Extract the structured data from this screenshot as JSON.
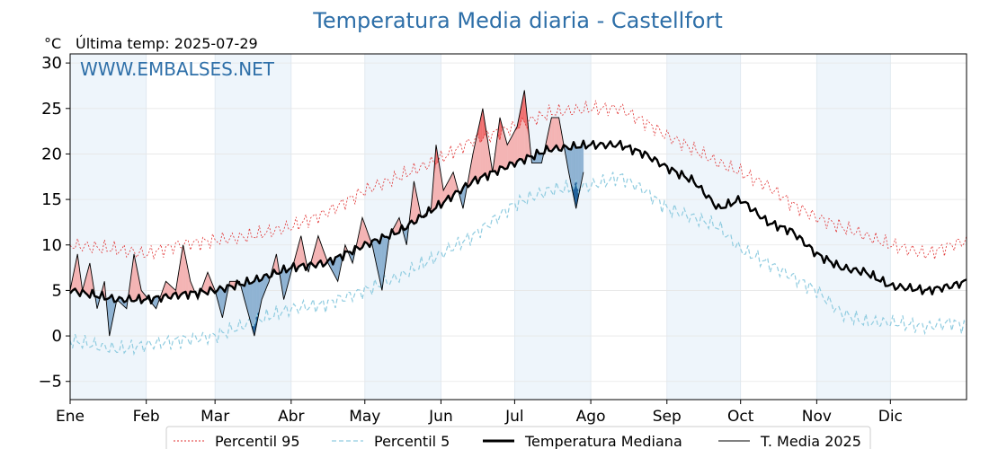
{
  "chart_data": {
    "type": "line",
    "title": "Temperatura Media diaria - Castellfort",
    "unit": "°C",
    "last_update": "Última temp: 2025-07-29",
    "watermark": "WWW.EMBALSES.NET",
    "ylim": [
      -7,
      31
    ],
    "yticks": [
      -5,
      0,
      5,
      10,
      15,
      20,
      25,
      30
    ],
    "xlim": [
      1,
      366
    ],
    "months": [
      "Ene",
      "Feb",
      "Mar",
      "Abr",
      "May",
      "Jun",
      "Jul",
      "Ago",
      "Sep",
      "Oct",
      "Nov",
      "Dic"
    ],
    "month_start_days": [
      1,
      32,
      60,
      91,
      121,
      152,
      182,
      213,
      244,
      274,
      305,
      335
    ],
    "grid": true,
    "legend_position": "bottom",
    "series_keypoints": {
      "p95": [
        [
          1,
          10
        ],
        [
          20,
          9.5
        ],
        [
          32,
          9
        ],
        [
          45,
          10
        ],
        [
          60,
          10.5
        ],
        [
          75,
          11
        ],
        [
          91,
          12
        ],
        [
          105,
          13.5
        ],
        [
          121,
          16
        ],
        [
          135,
          17.5
        ],
        [
          152,
          19.5
        ],
        [
          165,
          21.5
        ],
        [
          182,
          23
        ],
        [
          196,
          24.5
        ],
        [
          213,
          25
        ],
        [
          225,
          25
        ],
        [
          235,
          23.5
        ],
        [
          244,
          22
        ],
        [
          255,
          20.5
        ],
        [
          265,
          19
        ],
        [
          274,
          18
        ],
        [
          285,
          16.5
        ],
        [
          295,
          14.5
        ],
        [
          305,
          13
        ],
        [
          315,
          12
        ],
        [
          325,
          11
        ],
        [
          335,
          10
        ],
        [
          350,
          9
        ],
        [
          360,
          10
        ],
        [
          366,
          10.5
        ]
      ],
      "p5": [
        [
          1,
          -0.5
        ],
        [
          20,
          -1.5
        ],
        [
          32,
          -1
        ],
        [
          45,
          -0.5
        ],
        [
          60,
          0
        ],
        [
          75,
          1.5
        ],
        [
          91,
          3
        ],
        [
          105,
          3.5
        ],
        [
          121,
          5
        ],
        [
          135,
          6.5
        ],
        [
          152,
          9
        ],
        [
          165,
          11
        ],
        [
          182,
          14.5
        ],
        [
          196,
          16
        ],
        [
          213,
          16.5
        ],
        [
          225,
          17.5
        ],
        [
          235,
          16
        ],
        [
          244,
          14
        ],
        [
          255,
          13
        ],
        [
          265,
          12
        ],
        [
          274,
          9.5
        ],
        [
          285,
          8
        ],
        [
          295,
          6.5
        ],
        [
          305,
          5
        ],
        [
          315,
          2.5
        ],
        [
          325,
          1.5
        ],
        [
          335,
          1.5
        ],
        [
          350,
          1
        ],
        [
          360,
          1.5
        ],
        [
          366,
          1
        ]
      ],
      "median": [
        [
          1,
          5
        ],
        [
          20,
          4
        ],
        [
          32,
          4
        ],
        [
          45,
          4.5
        ],
        [
          60,
          5
        ],
        [
          75,
          6
        ],
        [
          91,
          7.5
        ],
        [
          105,
          8
        ],
        [
          121,
          10
        ],
        [
          135,
          11.5
        ],
        [
          152,
          14.5
        ],
        [
          165,
          17
        ],
        [
          182,
          19
        ],
        [
          196,
          20.5
        ],
        [
          213,
          21
        ],
        [
          225,
          21
        ],
        [
          235,
          20
        ],
        [
          244,
          18.5
        ],
        [
          255,
          17
        ],
        [
          265,
          14
        ],
        [
          274,
          15
        ],
        [
          285,
          12.5
        ],
        [
          295,
          11.5
        ],
        [
          305,
          9
        ],
        [
          315,
          7.5
        ],
        [
          325,
          7
        ],
        [
          335,
          5.5
        ],
        [
          350,
          5
        ],
        [
          360,
          5.5
        ],
        [
          366,
          6
        ]
      ],
      "t2025": [
        [
          1,
          5
        ],
        [
          4,
          9
        ],
        [
          6,
          5
        ],
        [
          9,
          8
        ],
        [
          12,
          3
        ],
        [
          15,
          6
        ],
        [
          17,
          0
        ],
        [
          20,
          4
        ],
        [
          24,
          3
        ],
        [
          27,
          9
        ],
        [
          30,
          5
        ],
        [
          33,
          4
        ],
        [
          36,
          3
        ],
        [
          40,
          6
        ],
        [
          44,
          5
        ],
        [
          47,
          10
        ],
        [
          50,
          6
        ],
        [
          53,
          4
        ],
        [
          57,
          7
        ],
        [
          60,
          5
        ],
        [
          63,
          2
        ],
        [
          66,
          6
        ],
        [
          70,
          6
        ],
        [
          73,
          3
        ],
        [
          76,
          0
        ],
        [
          79,
          4
        ],
        [
          82,
          6
        ],
        [
          85,
          9
        ],
        [
          88,
          4
        ],
        [
          92,
          8
        ],
        [
          95,
          11
        ],
        [
          98,
          7
        ],
        [
          102,
          11
        ],
        [
          106,
          8
        ],
        [
          110,
          6
        ],
        [
          113,
          10
        ],
        [
          116,
          8
        ],
        [
          120,
          13
        ],
        [
          124,
          10
        ],
        [
          128,
          5
        ],
        [
          131,
          11
        ],
        [
          135,
          13
        ],
        [
          138,
          10
        ],
        [
          141,
          17
        ],
        [
          144,
          13
        ],
        [
          148,
          14
        ],
        [
          150,
          21
        ],
        [
          153,
          16
        ],
        [
          157,
          18
        ],
        [
          161,
          14
        ],
        [
          165,
          20
        ],
        [
          169,
          25
        ],
        [
          173,
          18
        ],
        [
          176,
          24
        ],
        [
          179,
          21
        ],
        [
          183,
          23
        ],
        [
          186,
          27
        ],
        [
          189,
          19
        ],
        [
          193,
          19
        ],
        [
          197,
          24
        ],
        [
          200,
          24
        ],
        [
          204,
          18
        ],
        [
          207,
          14
        ],
        [
          210,
          18
        ]
      ],
      "t2025_last_day": 210
    },
    "legend": {
      "p95": "Percentil 95",
      "p5": "Percentil 5",
      "median": "Temperatura Mediana",
      "t2025": "T. Media 2025"
    },
    "colors": {
      "title": "#2e6fa8",
      "p95": "#e03030",
      "p5": "#90cce0",
      "median": "#000000",
      "t2025": "#000000",
      "above_fill": "#f4b4b4",
      "above_extreme_fill": "#f07070",
      "below_fill": "#8fb3d3",
      "below_extreme_fill": "#1f5f99",
      "month_band": "#eef5fb"
    }
  }
}
